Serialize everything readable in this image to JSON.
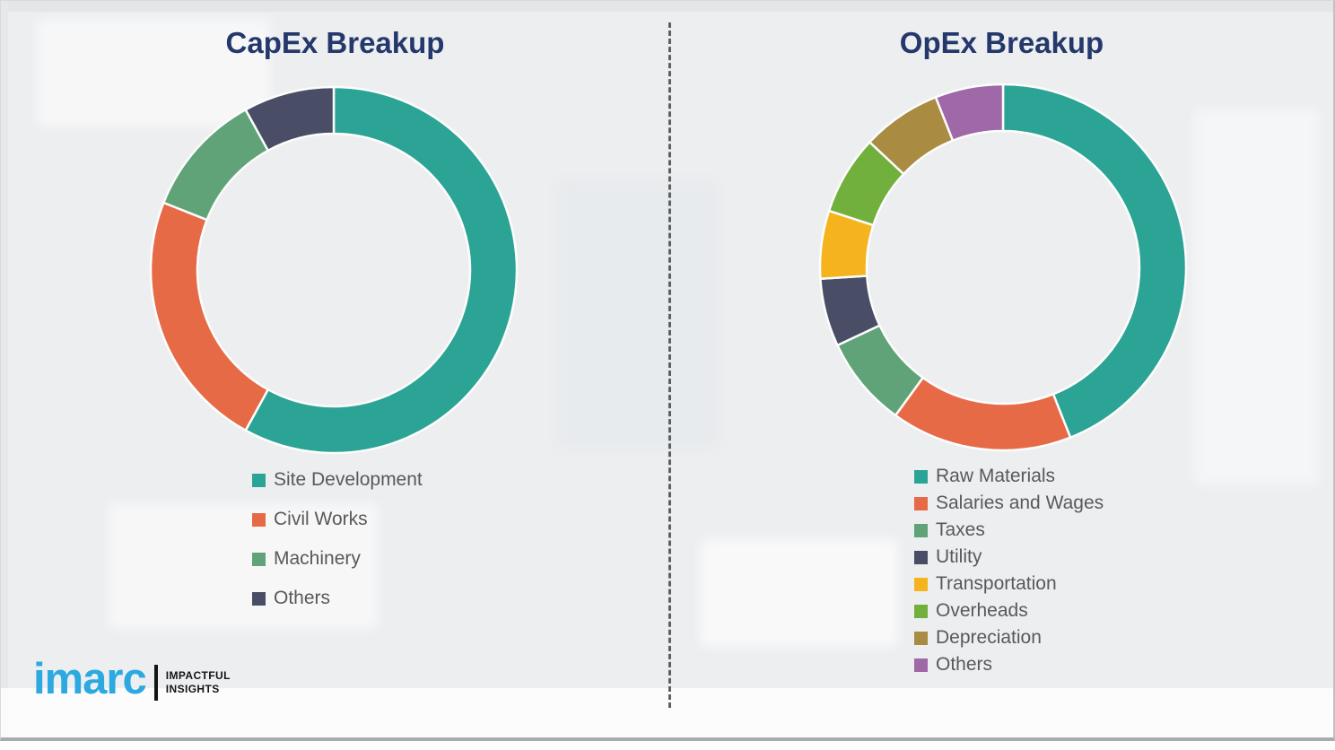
{
  "page": {
    "background_color": "#edeef0",
    "frame_border_color": "#a9acae"
  },
  "chart_data": [
    {
      "type": "donut",
      "title": "CapEx Breakup",
      "categories": [
        "Site Development",
        "Civil Works",
        "Machinery",
        "Others"
      ],
      "values": [
        58,
        23,
        11,
        8
      ],
      "unit": "percent (estimated from arc angles; no numeric labels shown)",
      "colors": [
        "#2BA395",
        "#E76A47",
        "#60A378",
        "#494E66"
      ],
      "start_angle": 0,
      "direction": "clockwise",
      "inner_radius_ratio": 0.745,
      "legend_position": "below-left",
      "legend_row_gap": 44
    },
    {
      "type": "donut",
      "title": "OpEx Breakup",
      "categories": [
        "Raw Materials",
        "Salaries and Wages",
        "Taxes",
        "Utility",
        "Transportation",
        "Overheads",
        "Depreciation",
        "Others"
      ],
      "values": [
        44,
        16,
        8,
        6,
        6,
        7,
        7,
        6
      ],
      "unit": "percent (estimated from arc angles; no numeric labels shown)",
      "colors": [
        "#2BA395",
        "#E76A47",
        "#60A378",
        "#494E66",
        "#F5B41E",
        "#72B03D",
        "#A98B41",
        "#9E69A6"
      ],
      "start_angle": 0,
      "direction": "clockwise",
      "inner_radius_ratio": 0.745,
      "legend_position": "below-left",
      "legend_row_gap": 30
    }
  ],
  "styles": {
    "title_color": "#24386B",
    "legend_text_color": "#595959",
    "segment_gap_color": "#FDFDFD"
  },
  "divider": {
    "style": "dashed",
    "orientation": "vertical",
    "color": "#5F5F5F"
  },
  "logo": {
    "brand": "imarc",
    "brand_color": "#2BA9E0",
    "tagline": [
      "IMPACTFUL",
      "INSIGHTS"
    ],
    "tagline_color": "#141414"
  }
}
